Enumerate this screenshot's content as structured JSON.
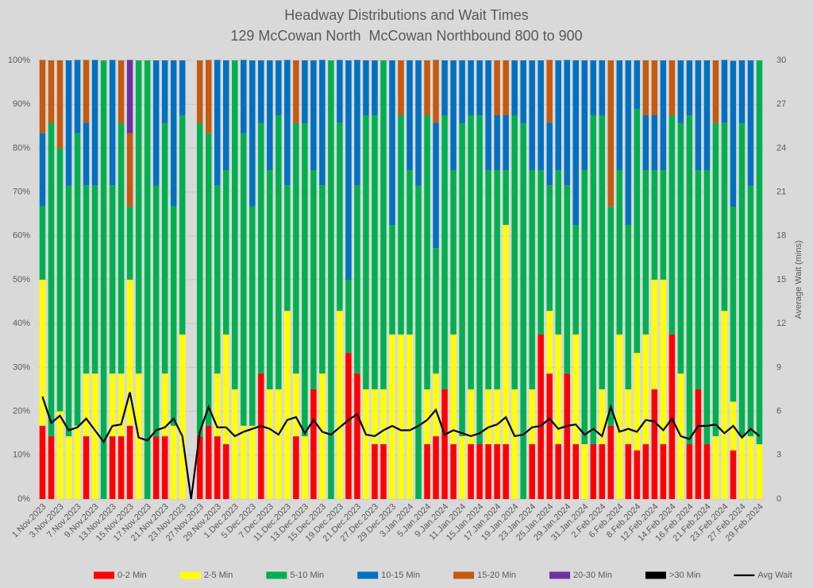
{
  "chart_data": {
    "type": "stacked-bar-line",
    "title": "Headway Distributions and Wait Times",
    "subtitle": "129 McCowan North  McCowan Northbound 800 to 900",
    "y2label": "Average Wait (mins)",
    "categories": [
      "1.Nov.2023",
      null,
      "3.Nov.2023",
      null,
      "7.Nov.2023",
      null,
      "9.Nov.2023",
      null,
      "13.Nov.2023",
      null,
      "15.Nov.2023",
      null,
      "17.Nov.2023",
      null,
      "21.Nov.2023",
      null,
      "23.Nov.2023",
      null,
      "27.Nov.2023",
      null,
      "29.Nov.2023",
      null,
      "1.Dec.2023",
      null,
      "5.Dec.2023",
      null,
      "7.Dec.2023",
      null,
      "11.Dec.2023",
      null,
      "13.Dec.2023",
      null,
      "15.Dec.2023",
      null,
      "19.Dec.2023",
      null,
      "21.Dec.2023",
      null,
      "27.Dec.2023",
      null,
      "29.Dec.2023",
      null,
      "3.Jan.2024",
      null,
      "5.Jan.2024",
      null,
      "9.Jan.2024",
      null,
      "11.Jan.2024",
      null,
      "15.Jan.2024",
      null,
      "17.Jan.2024",
      null,
      "19.Jan.2024",
      null,
      "23.Jan.2024",
      null,
      "25.Jan.2024",
      null,
      "29.Jan.2024",
      null,
      "31.Jan.2024",
      null,
      "2.Feb.2024",
      null,
      "6.Feb.2024",
      null,
      "8.Feb.2024",
      null,
      "12.Feb.2024",
      null,
      "14.Feb.2024",
      null,
      "16.Feb.2024",
      null,
      "21.Feb.2024",
      null,
      "23.Feb.2024",
      null,
      "27.Feb.2024",
      null,
      "29.Feb.2024"
    ],
    "series": [
      {
        "name": "0-2 Min",
        "color": "#ff0000",
        "values": [
          16.7,
          14.3,
          0,
          0,
          0,
          14.3,
          0,
          0,
          14.3,
          14.3,
          16.7,
          0,
          0,
          14.3,
          14.3,
          0,
          0,
          0,
          14.3,
          16.7,
          14.3,
          12.5,
          0,
          0,
          0,
          28.6,
          0,
          0,
          0,
          14.3,
          0,
          25,
          0,
          0,
          0,
          33.3,
          28.6,
          0,
          12.5,
          12.5,
          0,
          0,
          0,
          0,
          12.5,
          14.3,
          25,
          12.5,
          0,
          12.5,
          12.5,
          12.5,
          12.5,
          12.5,
          0,
          0,
          12.5,
          37.5,
          28.6,
          12.5,
          28.6,
          12.5,
          0,
          12.5,
          12.5,
          16.7,
          0,
          12.5,
          11.1,
          12.5,
          25,
          12.5,
          37.5,
          0,
          12.5,
          25,
          12.5,
          0,
          0,
          11.1,
          0,
          0,
          0
        ]
      },
      {
        "name": "2-5 Min",
        "color": "#ffff00",
        "values": [
          33.3,
          0,
          20,
          14.3,
          16.7,
          14.3,
          28.6,
          0,
          14.3,
          14.3,
          33.3,
          28.6,
          0,
          0,
          14.3,
          16.7,
          37.5,
          0,
          0,
          0,
          14.3,
          25,
          25,
          16.7,
          16.7,
          0,
          25,
          25,
          42.9,
          14.3,
          14.3,
          0,
          28.6,
          0,
          42.9,
          0,
          0,
          25,
          12.5,
          12.5,
          37.5,
          37.5,
          37.5,
          0,
          12.5,
          14.3,
          0,
          25,
          14.3,
          12.5,
          0,
          12.5,
          12.5,
          50,
          25,
          0,
          12.5,
          0,
          14.3,
          25,
          0,
          25,
          12.5,
          0,
          12.5,
          0,
          37.5,
          12.5,
          22.2,
          25,
          25,
          37.5,
          0,
          28.6,
          0,
          0,
          0,
          14.3,
          42.9,
          11.1,
          14.3,
          14.3,
          12.5
        ]
      },
      {
        "name": "5-10 Min",
        "color": "#00b050",
        "values": [
          16.7,
          71.4,
          60,
          57.1,
          66.7,
          42.9,
          42.9,
          100,
          42.9,
          57.1,
          16.7,
          71.4,
          100,
          57.1,
          57.1,
          50,
          50,
          0,
          71.4,
          66.7,
          42.9,
          37.5,
          75,
          66.7,
          50,
          57.1,
          50,
          62.5,
          28.6,
          57.1,
          71.4,
          50,
          42.9,
          100,
          42.9,
          16.7,
          42.9,
          62.5,
          62.5,
          75,
          25,
          50,
          37.5,
          71.4,
          62.5,
          28.6,
          62.5,
          37.5,
          71.4,
          62.5,
          75,
          50,
          50,
          12.5,
          62.5,
          85.7,
          50,
          37.5,
          28.6,
          37.5,
          42.9,
          25,
          62.5,
          75,
          62.5,
          50,
          37.5,
          37.5,
          55.6,
          37.5,
          25,
          25,
          50,
          57.1,
          75,
          50,
          62.5,
          71.4,
          42.9,
          44.4,
          71.4,
          57.1,
          87.5
        ]
      },
      {
        "name": "10-15 Min",
        "color": "#0070c0",
        "values": [
          16.7,
          0,
          0,
          28.6,
          16.7,
          14.3,
          28.6,
          0,
          28.6,
          0,
          0,
          0,
          0,
          28.6,
          14.3,
          33.3,
          12.5,
          0,
          0,
          0,
          28.6,
          25,
          0,
          16.7,
          33.3,
          14.3,
          25,
          12.5,
          28.6,
          0,
          14.3,
          25,
          28.6,
          0,
          14.3,
          50,
          28.6,
          12.5,
          12.5,
          0,
          37.5,
          0,
          25,
          28.6,
          0,
          28.6,
          12.5,
          25,
          14.3,
          12.5,
          12.5,
          25,
          12.5,
          12.5,
          12.5,
          14.3,
          25,
          25,
          14.3,
          25,
          28.6,
          37.5,
          25,
          12.5,
          12.5,
          0,
          25,
          37.5,
          11.1,
          12.5,
          12.5,
          25,
          0,
          14.3,
          12.5,
          25,
          25,
          0,
          14.3,
          33.3,
          14.3,
          28.6,
          0
        ]
      },
      {
        "name": "15-20 Min",
        "color": "#c55a11",
        "values": [
          16.7,
          14.3,
          20,
          0,
          0,
          14.3,
          0,
          0,
          0,
          14.3,
          16.7,
          0,
          0,
          0,
          0,
          0,
          0,
          0,
          14.3,
          16.7,
          0,
          0,
          0,
          0,
          0,
          0,
          0,
          0,
          0,
          14.3,
          0,
          0,
          0,
          0,
          0,
          0,
          0,
          0,
          0,
          0,
          0,
          12.5,
          0,
          0,
          12.5,
          14.3,
          0,
          0,
          0,
          0,
          0,
          0,
          12.5,
          12.5,
          0,
          0,
          0,
          0,
          14.3,
          0,
          0,
          0,
          0,
          0,
          0,
          33.3,
          0,
          0,
          0,
          12.5,
          12.5,
          0,
          12.5,
          0,
          0,
          0,
          0,
          14.3,
          0,
          0,
          0,
          0,
          0
        ]
      },
      {
        "name": "20-30 Min",
        "color": "#7030a0",
        "values": [
          0,
          0,
          0,
          0,
          0,
          0,
          0,
          0,
          0,
          0,
          16.7,
          0,
          0,
          0,
          0,
          0,
          0,
          0,
          0,
          0,
          0,
          0,
          0,
          0,
          0,
          0,
          0,
          0,
          0,
          0,
          0,
          0,
          0,
          0,
          0,
          0,
          0,
          0,
          0,
          0,
          0,
          0,
          0,
          0,
          0,
          0,
          0,
          0,
          0,
          0,
          0,
          0,
          0,
          0,
          0,
          0,
          0,
          0,
          0,
          0,
          0,
          0,
          0,
          0,
          0,
          0,
          0,
          0,
          0,
          0,
          0,
          0,
          0,
          0,
          0,
          0,
          0,
          0,
          0,
          0,
          0,
          0,
          0
        ]
      },
      {
        "name": ">30 Min",
        "color": "#000000",
        "values": [
          0,
          0,
          0,
          0,
          0,
          0,
          0,
          0,
          0,
          0,
          0,
          0,
          0,
          0,
          0,
          0,
          0,
          0,
          0,
          0,
          0,
          0,
          0,
          0,
          0,
          0,
          0,
          0,
          0,
          0,
          0,
          0,
          0,
          0,
          0,
          0,
          0,
          0,
          0,
          0,
          0,
          0,
          0,
          0,
          0,
          0,
          0,
          0,
          0,
          0,
          0,
          0,
          0,
          0,
          0,
          0,
          0,
          0,
          0,
          0,
          0,
          0,
          0,
          0,
          0,
          0,
          0,
          0,
          0,
          0,
          0,
          0,
          0,
          0,
          0,
          0,
          0,
          0,
          0,
          0,
          0,
          0,
          0
        ]
      },
      {
        "name": "Avg Wait",
        "color": "#000000",
        "type": "line",
        "axis": "y2",
        "values": [
          7.0,
          5.2,
          5.7,
          4.7,
          4.9,
          5.5,
          4.7,
          3.9,
          5.0,
          5.1,
          7.3,
          4.2,
          4.0,
          4.7,
          4.9,
          5.5,
          4.3,
          0,
          4.6,
          6.3,
          4.9,
          4.9,
          4.3,
          4.6,
          4.8,
          5.0,
          4.8,
          4.4,
          5.4,
          5.6,
          4.5,
          5.4,
          4.6,
          4.4,
          4.9,
          5.4,
          5.8,
          4.4,
          4.3,
          4.7,
          5.0,
          4.7,
          4.7,
          5.0,
          5.4,
          6.1,
          4.4,
          4.7,
          4.5,
          4.3,
          4.5,
          4.9,
          5.1,
          5.6,
          4.3,
          4.4,
          4.9,
          5.0,
          5.5,
          4.8,
          5.0,
          5.1,
          4.4,
          4.8,
          4.3,
          6.3,
          4.6,
          4.8,
          4.6,
          5.4,
          5.3,
          4.7,
          5.5,
          4.3,
          4.1,
          5.0,
          5.0,
          5.1,
          4.5,
          5.0,
          4.2,
          4.8,
          4.3
        ]
      }
    ],
    "ylim": [
      0,
      100
    ],
    "yticks": [
      {
        "value": 0,
        "label": "0%"
      },
      {
        "value": 10,
        "label": "10%"
      },
      {
        "value": 20,
        "label": "20%"
      },
      {
        "value": 30,
        "label": "30%"
      },
      {
        "value": 40,
        "label": "40%"
      },
      {
        "value": 50,
        "label": "50%"
      },
      {
        "value": 60,
        "label": "60%"
      },
      {
        "value": 70,
        "label": "70%"
      },
      {
        "value": 80,
        "label": "80%"
      },
      {
        "value": 90,
        "label": "90%"
      },
      {
        "value": 100,
        "label": "100%"
      }
    ],
    "y2lim": [
      0,
      30
    ],
    "y2ticks": [
      0,
      3,
      6,
      9,
      12,
      15,
      18,
      21,
      24,
      27,
      30
    ],
    "grid": true,
    "legend": "bottom"
  }
}
